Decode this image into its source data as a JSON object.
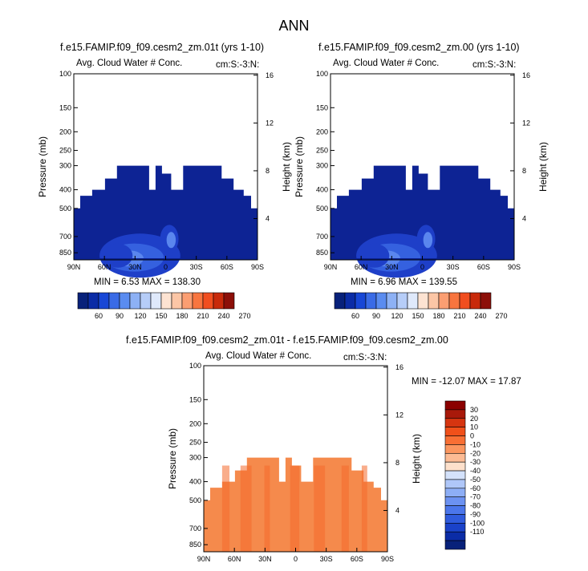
{
  "page_title": "ANN",
  "colors": {
    "cb_abs": [
      "#08217a",
      "#0b2ca6",
      "#1847d6",
      "#3a6be6",
      "#5a8cf0",
      "#8db1f5",
      "#b6cdf8",
      "#dfe9fb",
      "#fde3d2",
      "#fcc6a6",
      "#fb9e72",
      "#f8753f",
      "#f14e1f",
      "#c82a0b",
      "#8c0f08"
    ],
    "cb_diff": [
      "#08217a",
      "#0b2ca6",
      "#1a42c9",
      "#2f5bdd",
      "#4b76eb",
      "#6c92f2",
      "#8daef6",
      "#afc7f9",
      "#d4e2fb",
      "#fde0cb",
      "#fcbb94",
      "#fb965f",
      "#f86f34",
      "#f0501a",
      "#d63510",
      "#a8190a",
      "#8b0000"
    ],
    "dark_blue": "#0d2394",
    "orange": "#f58a4c",
    "orange_dark": "#f46a2c"
  },
  "chart_data": [
    {
      "type": "heatmap",
      "title": "f.e15.FAMIP.f09_f09.cesm2_zm.01t (yrs 1-10)",
      "left_label": "Avg. Cloud Water # Conc.",
      "right_label": "cm:S:-3:N:",
      "xlabel": "",
      "ylabel": "Pressure (mb)",
      "ylabel2": "Height (km)",
      "x_ticks": [
        "90N",
        "60N",
        "30N",
        "0",
        "30S",
        "60S",
        "90S"
      ],
      "y_ticks": [
        "100",
        "150",
        "200",
        "250",
        "300",
        "400",
        "500",
        "700",
        "850"
      ],
      "y2_ticks": [
        "16",
        "12",
        "8",
        "4"
      ],
      "stats": "MIN =   6.53   MAX = 138.30",
      "colorbar": [
        "60",
        "90",
        "120",
        "150",
        "180",
        "210",
        "240",
        "270"
      ]
    },
    {
      "type": "heatmap",
      "title": "f.e15.FAMIP.f09_f09.cesm2_zm.00 (yrs 1-10)",
      "left_label": "Avg. Cloud Water # Conc.",
      "right_label": "cm:S:-3:N:",
      "xlabel": "",
      "ylabel": "Pressure (mb)",
      "ylabel2": "Height (km)",
      "x_ticks": [
        "90N",
        "60N",
        "30N",
        "0",
        "30S",
        "60S",
        "90S"
      ],
      "y_ticks": [
        "100",
        "150",
        "200",
        "250",
        "300",
        "400",
        "500",
        "700",
        "850"
      ],
      "y2_ticks": [
        "16",
        "12",
        "8",
        "4"
      ],
      "stats": "MIN =   6.96   MAX = 139.55",
      "colorbar": [
        "60",
        "90",
        "120",
        "150",
        "180",
        "210",
        "240",
        "270"
      ]
    },
    {
      "type": "heatmap",
      "title": "f.e15.FAMIP.f09_f09.cesm2_zm.01t - f.e15.FAMIP.f09_f09.cesm2_zm.00",
      "left_label": "Avg. Cloud Water # Conc.",
      "right_label": "cm:S:-3:N:",
      "xlabel": "",
      "ylabel": "Pressure (mb)",
      "ylabel2": "Height (km)",
      "x_ticks": [
        "90N",
        "60N",
        "30N",
        "0",
        "30S",
        "60S",
        "90S"
      ],
      "y_ticks": [
        "100",
        "150",
        "200",
        "250",
        "300",
        "400",
        "500",
        "700",
        "850"
      ],
      "y2_ticks": [
        "16",
        "12",
        "8",
        "4"
      ],
      "stats": "MIN = -12.07   MAX =  17.87",
      "colorbar": [
        "30",
        "20",
        "10",
        "0",
        "-10",
        "-20",
        "-30",
        "-40",
        "-50",
        "-60",
        "-70",
        "-80",
        "-90",
        "-100",
        "-110"
      ]
    }
  ]
}
